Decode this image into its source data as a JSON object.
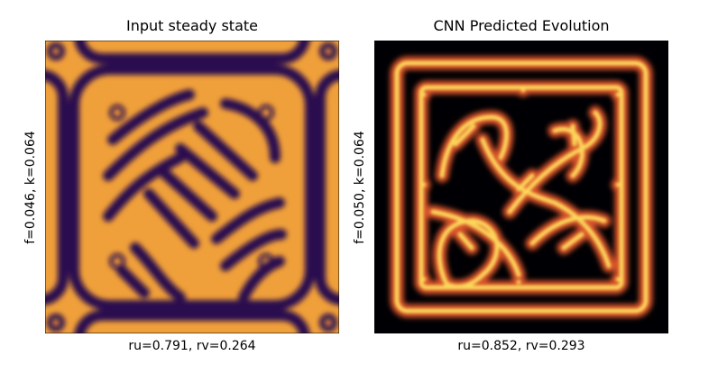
{
  "panels": [
    {
      "title": "Input steady state",
      "ylabel": "f=0.046, k=0.064",
      "xlabel": "ru=0.791, rv=0.264"
    },
    {
      "title": "CNN Predicted Evolution",
      "ylabel": "f=0.050, k=0.064",
      "xlabel": "ru=0.852, rv=0.293"
    }
  ]
}
